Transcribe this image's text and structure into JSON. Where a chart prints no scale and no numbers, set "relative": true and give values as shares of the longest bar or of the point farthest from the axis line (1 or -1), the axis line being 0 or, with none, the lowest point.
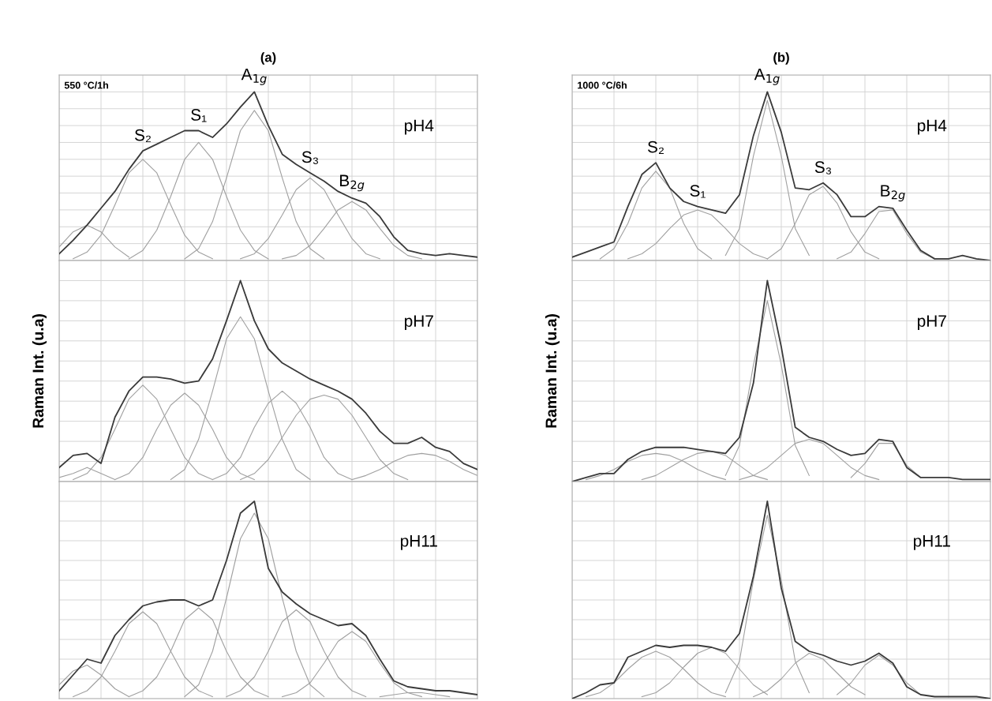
{
  "chart_data": [
    {
      "type": "line",
      "title": "(a)",
      "relative": true,
      "grid": true,
      "annotations": [
        "550 °C/1h",
        "pH4"
      ],
      "categories": [
        null,
        null,
        null,
        null,
        null,
        null,
        null,
        null,
        null,
        null,
        null,
        null,
        null,
        null,
        null,
        null,
        null,
        null,
        null,
        null,
        null,
        null,
        null,
        null,
        null,
        null,
        null,
        null,
        null,
        null,
        null
      ],
      "series": [
        {
          "color": "#3a3a3a",
          "values": [
            0.04,
            0.12,
            0.21,
            0.31,
            0.41,
            0.54,
            0.65,
            0.69,
            0.73,
            0.77,
            0.77,
            0.73,
            0.81,
            0.91,
            1,
            0.8,
            0.63,
            0.57,
            0.52,
            0.47,
            0.41,
            0.37,
            0.34,
            0.26,
            0.14,
            0.06,
            0.04,
            0.03,
            0.04,
            0.03,
            0.02
          ]
        },
        {
          "color": "#a0a0a0",
          "values": [
            0.08,
            0.17,
            0.21,
            0.17,
            0.08,
            0.02,
            null,
            null,
            null,
            null,
            null,
            null,
            null,
            null,
            null,
            null,
            null,
            null,
            null,
            null,
            null,
            null,
            null,
            null,
            null,
            null,
            null,
            null,
            null,
            null,
            null
          ]
        },
        {
          "name": "S₂",
          "color": "#a0a0a0",
          "values": [
            null,
            0.01,
            0.05,
            0.15,
            0.33,
            0.52,
            0.6,
            0.52,
            0.33,
            0.15,
            0.05,
            0.01,
            null,
            null,
            null,
            null,
            null,
            null,
            null,
            null,
            null,
            null,
            null,
            null,
            null,
            null,
            null,
            null,
            null,
            null,
            null
          ]
        },
        {
          "name": "S₁",
          "color": "#a0a0a0",
          "values": [
            null,
            null,
            null,
            null,
            null,
            0.01,
            0.06,
            0.18,
            0.38,
            0.6,
            0.7,
            0.6,
            0.38,
            0.18,
            0.06,
            0.01,
            null,
            null,
            null,
            null,
            null,
            null,
            null,
            null,
            null,
            null,
            null,
            null,
            null,
            null,
            null
          ]
        },
        {
          "name": "A$_{1g}$",
          "color": "#a0a0a0",
          "values": [
            null,
            null,
            null,
            null,
            null,
            null,
            null,
            null,
            null,
            0.01,
            0.07,
            0.23,
            0.49,
            0.77,
            0.89,
            0.77,
            0.49,
            0.23,
            0.07,
            0.01,
            null,
            null,
            null,
            null,
            null,
            null,
            null,
            null,
            null,
            null,
            null
          ]
        },
        {
          "name": "S₃",
          "color": "#a0a0a0",
          "values": [
            null,
            null,
            null,
            null,
            null,
            null,
            null,
            null,
            null,
            null,
            null,
            null,
            null,
            0.01,
            0.04,
            0.13,
            0.27,
            0.42,
            0.49,
            0.42,
            0.27,
            0.13,
            0.04,
            0.01,
            null,
            null,
            null,
            null,
            null,
            null,
            null
          ]
        },
        {
          "name": "B$_{2g}$",
          "color": "#a0a0a0",
          "values": [
            null,
            null,
            null,
            null,
            null,
            null,
            null,
            null,
            null,
            null,
            null,
            null,
            null,
            null,
            null,
            null,
            0.01,
            0.03,
            0.09,
            0.19,
            0.3,
            0.35,
            0.3,
            0.19,
            0.09,
            0.03,
            0.01,
            null,
            null,
            null,
            null
          ]
        }
      ]
    },
    {
      "type": "line",
      "title": "(b)",
      "relative": true,
      "grid": true,
      "annotations": [
        "1000 °C/6h",
        "pH4"
      ],
      "categories": [
        null,
        null,
        null,
        null,
        null,
        null,
        null,
        null,
        null,
        null,
        null,
        null,
        null,
        null,
        null,
        null,
        null,
        null,
        null,
        null,
        null,
        null,
        null,
        null,
        null,
        null,
        null,
        null,
        null,
        null,
        null
      ],
      "series": [
        {
          "color": "#3a3a3a",
          "values": [
            0.02,
            0.05,
            0.08,
            0.11,
            0.32,
            0.51,
            0.58,
            0.43,
            0.35,
            0.32,
            0.3,
            0.28,
            0.39,
            0.74,
            1,
            0.76,
            0.43,
            0.42,
            0.46,
            0.39,
            0.26,
            0.26,
            0.32,
            0.31,
            0.18,
            0.06,
            0.01,
            0.01,
            0.03,
            0.01,
            0
          ]
        },
        {
          "name": "S₂",
          "color": "#a0a0a0",
          "values": [
            null,
            null,
            0.01,
            0.07,
            0.22,
            0.43,
            0.53,
            0.43,
            0.22,
            0.07,
            0.01,
            null,
            null,
            null,
            null,
            null,
            null,
            null,
            null,
            null,
            null,
            null,
            null,
            null,
            null,
            null,
            null,
            null,
            null,
            null,
            null
          ]
        },
        {
          "name": "S₁",
          "color": "#a0a0a0",
          "values": [
            null,
            null,
            null,
            null,
            0.01,
            0.04,
            0.1,
            0.19,
            0.27,
            0.3,
            0.27,
            0.19,
            0.1,
            0.04,
            0.01,
            null,
            null,
            null,
            null,
            null,
            null,
            null,
            null,
            null,
            null,
            null,
            null,
            null,
            null,
            null,
            null
          ]
        },
        {
          "name": "A$_{1g}$",
          "color": "#a0a0a0",
          "values": [
            null,
            null,
            null,
            null,
            null,
            null,
            null,
            null,
            null,
            null,
            null,
            0.03,
            0.19,
            0.62,
            0.95,
            0.62,
            0.19,
            0.03,
            null,
            null,
            null,
            null,
            null,
            null,
            null,
            null,
            null,
            null,
            null,
            null,
            null
          ]
        },
        {
          "name": "S₃",
          "color": "#a0a0a0",
          "values": [
            null,
            null,
            null,
            null,
            null,
            null,
            null,
            null,
            null,
            null,
            null,
            null,
            null,
            null,
            0.01,
            0.07,
            0.22,
            0.39,
            0.44,
            0.34,
            0.17,
            0.05,
            0.01,
            null,
            null,
            null,
            null,
            null,
            null,
            null,
            null
          ]
        },
        {
          "name": "B$_{2g}$",
          "color": "#a0a0a0",
          "values": [
            null,
            null,
            null,
            null,
            null,
            null,
            null,
            null,
            null,
            null,
            null,
            null,
            null,
            null,
            null,
            null,
            null,
            null,
            null,
            0.01,
            0.05,
            0.16,
            0.29,
            0.3,
            0.16,
            0.05,
            0.01,
            null,
            null,
            null,
            null
          ]
        }
      ]
    },
    {
      "type": "line",
      "relative": true,
      "grid": true,
      "ylabel": "Raman Int. (u.a)",
      "annotations": [
        "pH7"
      ],
      "categories": [
        null,
        null,
        null,
        null,
        null,
        null,
        null,
        null,
        null,
        null,
        null,
        null,
        null,
        null,
        null,
        null,
        null,
        null,
        null,
        null,
        null,
        null,
        null,
        null,
        null,
        null,
        null,
        null,
        null,
        null,
        null
      ],
      "series": [
        {
          "color": "#3a3a3a",
          "values": [
            0.07,
            0.13,
            0.14,
            0.09,
            0.32,
            0.45,
            0.52,
            0.52,
            0.51,
            0.49,
            0.5,
            0.61,
            0.8,
            1,
            0.8,
            0.66,
            0.59,
            0.55,
            0.51,
            0.48,
            0.45,
            0.41,
            0.34,
            0.25,
            0.19,
            0.19,
            0.22,
            0.17,
            0.15,
            0.09,
            0.06
          ]
        },
        {
          "color": "#a0a0a0",
          "values": [
            0.02,
            0.04,
            0.07,
            0.04,
            0.01,
            null,
            null,
            null,
            null,
            null,
            null,
            null,
            null,
            null,
            null,
            null,
            null,
            null,
            null,
            null,
            null,
            null,
            null,
            null,
            null,
            null,
            null,
            null,
            null,
            null,
            null
          ]
        },
        {
          "color": "#a0a0a0",
          "values": [
            null,
            0.01,
            0.04,
            0.12,
            0.26,
            0.41,
            0.48,
            0.41,
            0.26,
            0.12,
            0.04,
            0.01,
            null,
            null,
            null,
            null,
            null,
            null,
            null,
            null,
            null,
            null,
            null,
            null,
            null,
            null,
            null,
            null,
            null,
            null,
            null
          ]
        },
        {
          "color": "#a0a0a0",
          "values": [
            null,
            null,
            null,
            null,
            0.01,
            0.04,
            0.12,
            0.26,
            0.38,
            0.44,
            0.38,
            0.26,
            0.12,
            0.04,
            0.01,
            null,
            null,
            null,
            null,
            null,
            null,
            null,
            null,
            null,
            null,
            null,
            null,
            null,
            null,
            null,
            null
          ]
        },
        {
          "color": "#a0a0a0",
          "values": [
            null,
            null,
            null,
            null,
            null,
            null,
            null,
            null,
            0.01,
            0.06,
            0.21,
            0.45,
            0.71,
            0.82,
            0.71,
            0.45,
            0.21,
            0.06,
            0.01,
            null,
            null,
            null,
            null,
            null,
            null,
            null,
            null,
            null,
            null,
            null,
            null
          ]
        },
        {
          "color": "#a0a0a0",
          "values": [
            null,
            null,
            null,
            null,
            null,
            null,
            null,
            null,
            null,
            null,
            null,
            0.01,
            0.04,
            0.12,
            0.27,
            0.39,
            0.45,
            0.39,
            0.27,
            0.12,
            0.04,
            0.01,
            null,
            null,
            null,
            null,
            null,
            null,
            null,
            null,
            null
          ]
        },
        {
          "color": "#a0a0a0",
          "values": [
            null,
            null,
            null,
            null,
            null,
            null,
            null,
            null,
            null,
            null,
            null,
            null,
            null,
            0.01,
            0.04,
            0.11,
            0.22,
            0.33,
            0.41,
            0.43,
            0.41,
            0.33,
            0.22,
            0.11,
            0.04,
            0.01,
            null,
            null,
            null,
            null,
            null
          ]
        },
        {
          "color": "#a0a0a0",
          "values": [
            null,
            null,
            null,
            null,
            null,
            null,
            null,
            null,
            null,
            null,
            null,
            null,
            null,
            null,
            null,
            null,
            null,
            null,
            null,
            null,
            null,
            0.01,
            0.03,
            0.06,
            0.1,
            0.13,
            0.14,
            0.13,
            0.1,
            0.06,
            0.03
          ]
        }
      ]
    },
    {
      "type": "line",
      "relative": true,
      "grid": true,
      "ylabel": "Raman Int. (u.a)",
      "annotations": [
        "pH7"
      ],
      "categories": [
        null,
        null,
        null,
        null,
        null,
        null,
        null,
        null,
        null,
        null,
        null,
        null,
        null,
        null,
        null,
        null,
        null,
        null,
        null,
        null,
        null,
        null,
        null,
        null,
        null,
        null,
        null,
        null,
        null,
        null,
        null
      ],
      "series": [
        {
          "color": "#3a3a3a",
          "values": [
            0,
            0.02,
            0.04,
            0.04,
            0.11,
            0.15,
            0.17,
            0.17,
            0.17,
            0.16,
            0.15,
            0.14,
            0.22,
            0.49,
            1,
            0.67,
            0.27,
            0.22,
            0.2,
            0.16,
            0.13,
            0.14,
            0.21,
            0.2,
            0.07,
            0.02,
            0.02,
            0.02,
            0.01,
            0.01,
            0.01
          ]
        },
        {
          "color": "#a0a0a0",
          "values": [
            null,
            0.01,
            0.03,
            0.06,
            0.1,
            0.13,
            0.14,
            0.13,
            0.1,
            0.06,
            0.03,
            0.01,
            null,
            null,
            null,
            null,
            null,
            null,
            null,
            null,
            null,
            null,
            null,
            null,
            null,
            null,
            null,
            null,
            null,
            null,
            null
          ]
        },
        {
          "color": "#a0a0a0",
          "values": [
            null,
            null,
            null,
            null,
            null,
            0.01,
            0.03,
            0.07,
            0.11,
            0.14,
            0.15,
            0.13,
            0.08,
            0.03,
            0.01,
            null,
            null,
            null,
            null,
            null,
            null,
            null,
            null,
            null,
            null,
            null,
            null,
            null,
            null,
            null,
            null
          ]
        },
        {
          "color": "#a0a0a0",
          "values": [
            null,
            null,
            null,
            null,
            null,
            null,
            null,
            null,
            null,
            null,
            null,
            0.03,
            0.18,
            0.58,
            0.9,
            0.58,
            0.18,
            0.03,
            null,
            null,
            null,
            null,
            null,
            null,
            null,
            null,
            null,
            null,
            null,
            null,
            null
          ]
        },
        {
          "color": "#a0a0a0",
          "values": [
            null,
            null,
            null,
            null,
            null,
            null,
            null,
            null,
            null,
            null,
            null,
            null,
            0.01,
            0.03,
            0.07,
            0.13,
            0.19,
            0.21,
            0.19,
            0.13,
            0.07,
            0.03,
            0.01,
            null,
            null,
            null,
            null,
            null,
            null,
            null,
            null
          ]
        },
        {
          "color": "#a0a0a0",
          "values": [
            null,
            null,
            null,
            null,
            null,
            null,
            null,
            null,
            null,
            null,
            null,
            null,
            null,
            null,
            null,
            null,
            null,
            null,
            null,
            null,
            0.02,
            0.09,
            0.19,
            0.19,
            0.08,
            0.02,
            null,
            null,
            null,
            null,
            null
          ]
        }
      ]
    },
    {
      "type": "line",
      "relative": true,
      "grid": true,
      "annotations": [
        "pH11"
      ],
      "categories": [
        null,
        null,
        null,
        null,
        null,
        null,
        null,
        null,
        null,
        null,
        null,
        null,
        null,
        null,
        null,
        null,
        null,
        null,
        null,
        null,
        null,
        null,
        null,
        null,
        null,
        null,
        null,
        null,
        null,
        null,
        null
      ],
      "series": [
        {
          "color": "#3a3a3a",
          "values": [
            0.04,
            0.12,
            0.2,
            0.18,
            0.32,
            0.4,
            0.47,
            0.49,
            0.5,
            0.5,
            0.47,
            0.5,
            0.7,
            0.94,
            1,
            0.66,
            0.54,
            0.48,
            0.43,
            0.4,
            0.37,
            0.38,
            0.32,
            0.2,
            0.09,
            0.06,
            0.05,
            0.04,
            0.04,
            0.03,
            0.02
          ]
        },
        {
          "color": "#a0a0a0",
          "values": [
            0.07,
            0.14,
            0.17,
            0.12,
            0.05,
            0.01,
            null,
            null,
            null,
            null,
            null,
            null,
            null,
            null,
            null,
            null,
            null,
            null,
            null,
            null,
            null,
            null,
            null,
            null,
            null,
            null,
            null,
            null,
            null,
            null,
            null
          ]
        },
        {
          "color": "#a0a0a0",
          "values": [
            null,
            0.01,
            0.04,
            0.11,
            0.24,
            0.38,
            0.44,
            0.38,
            0.24,
            0.11,
            0.04,
            0.01,
            null,
            null,
            null,
            null,
            null,
            null,
            null,
            null,
            null,
            null,
            null,
            null,
            null,
            null,
            null,
            null,
            null,
            null,
            null
          ]
        },
        {
          "color": "#a0a0a0",
          "values": [
            null,
            null,
            null,
            null,
            null,
            0.01,
            0.04,
            0.11,
            0.24,
            0.4,
            0.46,
            0.4,
            0.24,
            0.11,
            0.04,
            0.01,
            null,
            null,
            null,
            null,
            null,
            null,
            null,
            null,
            null,
            null,
            null,
            null,
            null,
            null,
            null
          ]
        },
        {
          "color": "#a0a0a0",
          "values": [
            null,
            null,
            null,
            null,
            null,
            null,
            null,
            null,
            null,
            0.01,
            0.07,
            0.24,
            0.51,
            0.81,
            0.94,
            0.81,
            0.51,
            0.24,
            0.07,
            0.01,
            null,
            null,
            null,
            null,
            null,
            null,
            null,
            null,
            null,
            null,
            null
          ]
        },
        {
          "color": "#a0a0a0",
          "values": [
            null,
            null,
            null,
            null,
            null,
            null,
            null,
            null,
            null,
            null,
            null,
            null,
            0.01,
            0.04,
            0.11,
            0.24,
            0.39,
            0.45,
            0.39,
            0.24,
            0.11,
            0.04,
            0.01,
            null,
            null,
            null,
            null,
            null,
            null,
            null,
            null
          ]
        },
        {
          "color": "#a0a0a0",
          "values": [
            null,
            null,
            null,
            null,
            null,
            null,
            null,
            null,
            null,
            null,
            null,
            null,
            null,
            null,
            null,
            null,
            0.01,
            0.03,
            0.08,
            0.18,
            0.29,
            0.34,
            0.29,
            0.18,
            0.08,
            0.03,
            0.01,
            null,
            null,
            null,
            null
          ]
        },
        {
          "color": "#a0a0a0",
          "values": [
            null,
            null,
            null,
            null,
            null,
            null,
            null,
            null,
            null,
            null,
            null,
            null,
            null,
            null,
            null,
            null,
            null,
            null,
            null,
            null,
            null,
            null,
            null,
            0.01,
            0.02,
            0.03,
            0.03,
            0.02,
            0.01,
            null,
            null
          ]
        }
      ]
    },
    {
      "type": "line",
      "relative": true,
      "grid": true,
      "annotations": [
        "pH11"
      ],
      "categories": [
        null,
        null,
        null,
        null,
        null,
        null,
        null,
        null,
        null,
        null,
        null,
        null,
        null,
        null,
        null,
        null,
        null,
        null,
        null,
        null,
        null,
        null,
        null,
        null,
        null,
        null,
        null,
        null,
        null,
        null,
        null
      ],
      "series": [
        {
          "color": "#3a3a3a",
          "values": [
            0,
            0.03,
            0.07,
            0.08,
            0.21,
            0.24,
            0.27,
            0.26,
            0.27,
            0.27,
            0.26,
            0.24,
            0.33,
            0.62,
            1,
            0.56,
            0.29,
            0.24,
            0.22,
            0.19,
            0.17,
            0.19,
            0.23,
            0.18,
            0.06,
            0.02,
            0.01,
            0.01,
            0.01,
            0.01,
            0
          ]
        },
        {
          "color": "#a0a0a0",
          "values": [
            null,
            0.01,
            0.03,
            0.08,
            0.15,
            0.21,
            0.24,
            0.21,
            0.15,
            0.08,
            0.03,
            0.01,
            null,
            null,
            null,
            null,
            null,
            null,
            null,
            null,
            null,
            null,
            null,
            null,
            null,
            null,
            null,
            null,
            null,
            null,
            null
          ]
        },
        {
          "color": "#a0a0a0",
          "values": [
            null,
            null,
            null,
            null,
            null,
            0.01,
            0.03,
            0.08,
            0.16,
            0.23,
            0.26,
            0.23,
            0.15,
            0.07,
            0.02,
            null,
            null,
            null,
            null,
            null,
            null,
            null,
            null,
            null,
            null,
            null,
            null,
            null,
            null,
            null,
            null
          ]
        },
        {
          "color": "#a0a0a0",
          "values": [
            null,
            null,
            null,
            null,
            null,
            null,
            null,
            null,
            null,
            null,
            null,
            0.03,
            0.19,
            0.6,
            0.93,
            0.6,
            0.19,
            0.03,
            null,
            null,
            null,
            null,
            null,
            null,
            null,
            null,
            null,
            null,
            null,
            null,
            null
          ]
        },
        {
          "color": "#a0a0a0",
          "values": [
            null,
            null,
            null,
            null,
            null,
            null,
            null,
            null,
            null,
            null,
            null,
            null,
            null,
            0.01,
            0.04,
            0.1,
            0.18,
            0.23,
            0.2,
            0.13,
            0.06,
            0.02,
            null,
            null,
            null,
            null,
            null,
            null,
            null,
            null,
            null
          ]
        },
        {
          "color": "#a0a0a0",
          "values": [
            null,
            null,
            null,
            null,
            null,
            null,
            null,
            null,
            null,
            null,
            null,
            null,
            null,
            null,
            null,
            null,
            null,
            null,
            null,
            0.02,
            0.08,
            0.17,
            0.22,
            0.17,
            0.08,
            0.02,
            null,
            null,
            null,
            null,
            null
          ]
        }
      ]
    }
  ]
}
